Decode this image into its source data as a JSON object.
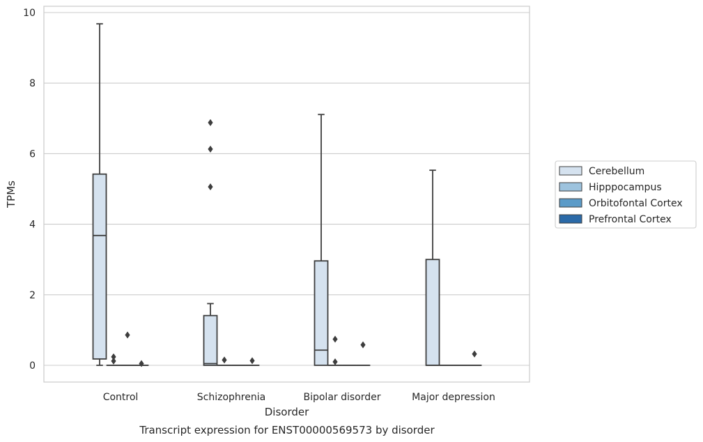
{
  "chart_data": {
    "type": "boxplot",
    "title": "",
    "caption": "Transcript expression for ENST00000569573 by disorder",
    "xlabel": "Disorder",
    "ylabel": "TPMs",
    "ylim": [
      -0.45,
      10.18
    ],
    "yticks": [
      0,
      2,
      4,
      6,
      8,
      10
    ],
    "grid": "horizontal",
    "legend_position": "right",
    "categories": [
      "Control",
      "Schizophrenia",
      "Bipolar disorder",
      "Major depression"
    ],
    "series": [
      {
        "name": "Cerebellum",
        "color": "#d5e2ef",
        "boxes": [
          {
            "whislo": 0,
            "q1": 0.18,
            "med": 3.68,
            "q3": 5.42,
            "whishi": 9.68,
            "fliers": []
          },
          {
            "whislo": 0,
            "q1": 0,
            "med": 0.05,
            "q3": 1.41,
            "whishi": 1.75,
            "fliers": [
              5.06,
              6.13,
              6.88
            ]
          },
          {
            "whislo": 0,
            "q1": 0,
            "med": 0.43,
            "q3": 2.96,
            "whishi": 7.11,
            "fliers": []
          },
          {
            "whislo": 0,
            "q1": 0,
            "med": 0,
            "q3": 3.0,
            "whishi": 5.53,
            "fliers": []
          }
        ]
      },
      {
        "name": "Hipppocampus",
        "color": "#9dc3de",
        "boxes": [
          {
            "whislo": 0,
            "q1": 0,
            "med": 0,
            "q3": 0,
            "whishi": 0,
            "fliers": [
              0.12,
              0.24
            ]
          },
          {
            "whislo": 0,
            "q1": 0,
            "med": 0,
            "q3": 0,
            "whishi": 0,
            "fliers": [
              0.15
            ]
          },
          {
            "whislo": 0,
            "q1": 0,
            "med": 0,
            "q3": 0,
            "whishi": 0,
            "fliers": [
              0.1,
              0.74
            ]
          },
          {
            "whislo": 0,
            "q1": 0,
            "med": 0,
            "q3": 0,
            "whishi": 0,
            "fliers": []
          }
        ]
      },
      {
        "name": "Orbitofontal Cortex",
        "color": "#5b9bc8",
        "boxes": [
          {
            "whislo": 0,
            "q1": 0,
            "med": 0,
            "q3": 0,
            "whishi": 0,
            "fliers": [
              0.86
            ]
          },
          {
            "whislo": 0,
            "q1": 0,
            "med": 0,
            "q3": 0,
            "whishi": 0,
            "fliers": []
          },
          {
            "whislo": 0,
            "q1": 0,
            "med": 0,
            "q3": 0,
            "whishi": 0,
            "fliers": []
          },
          {
            "whislo": 0,
            "q1": 0,
            "med": 0,
            "q3": 0,
            "whishi": 0,
            "fliers": []
          }
        ]
      },
      {
        "name": "Prefrontal Cortex",
        "color": "#2b6aa8",
        "boxes": [
          {
            "whislo": 0,
            "q1": 0,
            "med": 0,
            "q3": 0,
            "whishi": 0,
            "fliers": [
              0.05
            ]
          },
          {
            "whislo": 0,
            "q1": 0,
            "med": 0,
            "q3": 0,
            "whishi": 0,
            "fliers": [
              0.13
            ]
          },
          {
            "whislo": 0,
            "q1": 0,
            "med": 0,
            "q3": 0,
            "whishi": 0,
            "fliers": [
              0.58
            ]
          },
          {
            "whislo": 0,
            "q1": 0,
            "med": 0,
            "q3": 0,
            "whishi": 0,
            "fliers": [
              0.32
            ]
          }
        ]
      }
    ]
  }
}
